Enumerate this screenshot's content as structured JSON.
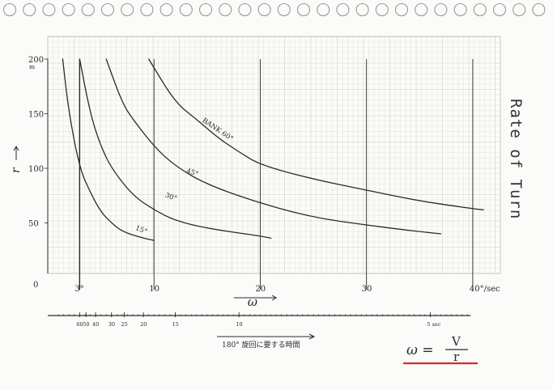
{
  "page": {
    "side_title": "Rate of Turn",
    "formula": {
      "lhs": "ω =",
      "numerator": "V",
      "denominator": "r"
    },
    "underline_color": "#d62b2b"
  },
  "colors": {
    "ink": "#2a2a2a",
    "grid_minor": "#e4e4e0",
    "grid_major": "#cfcfca",
    "paper": "#fbfbf9"
  },
  "chart_data": {
    "type": "line",
    "title": "",
    "xlabel": "ω",
    "ylabel": "r",
    "xlim": [
      0,
      41
    ],
    "ylim": [
      0,
      200
    ],
    "x_ticks": [
      {
        "value": 3,
        "label": "3°"
      },
      {
        "value": 10,
        "label": "10"
      },
      {
        "value": 20,
        "label": "20"
      },
      {
        "value": 30,
        "label": "30"
      },
      {
        "value": 40,
        "label": "40°/sec"
      }
    ],
    "y_ticks": [
      {
        "value": 50,
        "label": "50"
      },
      {
        "value": 100,
        "label": "100"
      },
      {
        "value": 150,
        "label": "150"
      },
      {
        "value": 200,
        "label": "200"
      }
    ],
    "y_unit": "m",
    "origin_label": "0",
    "vertical_lines": [
      3,
      10,
      20,
      30,
      40
    ],
    "series": [
      {
        "name": "15°",
        "points": [
          [
            1.4,
            200
          ],
          [
            2,
            150
          ],
          [
            3,
            100
          ],
          [
            4,
            78
          ],
          [
            5,
            60
          ],
          [
            6,
            50
          ],
          [
            7,
            42
          ],
          [
            9,
            36
          ],
          [
            10,
            34
          ]
        ]
      },
      {
        "name": "30°",
        "points": [
          [
            3,
            200
          ],
          [
            4,
            150
          ],
          [
            5,
            120
          ],
          [
            6,
            100
          ],
          [
            8,
            75
          ],
          [
            10,
            62
          ],
          [
            12,
            52
          ],
          [
            15,
            45
          ],
          [
            20,
            38
          ],
          [
            21,
            36
          ]
        ]
      },
      {
        "name": "45°",
        "points": [
          [
            5.5,
            200
          ],
          [
            7,
            160
          ],
          [
            8,
            145
          ],
          [
            10,
            120
          ],
          [
            12,
            102
          ],
          [
            15,
            85
          ],
          [
            20,
            68
          ],
          [
            25,
            55
          ],
          [
            30,
            48
          ],
          [
            35,
            42
          ],
          [
            37,
            40
          ]
        ]
      },
      {
        "name": "BANK 60°",
        "points": [
          [
            9.5,
            200
          ],
          [
            12,
            160
          ],
          [
            14,
            145
          ],
          [
            16,
            128
          ],
          [
            18,
            115
          ],
          [
            20,
            103
          ],
          [
            25,
            90
          ],
          [
            30,
            80
          ],
          [
            35,
            70
          ],
          [
            40,
            63
          ],
          [
            41,
            62
          ]
        ]
      }
    ],
    "series_labels": [
      {
        "text": "15°",
        "x": 8.2,
        "y": 44,
        "rotate": 22
      },
      {
        "text": "30°",
        "x": 11,
        "y": 74,
        "rotate": 20
      },
      {
        "text": "45°",
        "x": 13,
        "y": 96,
        "rotate": 18
      },
      {
        "text": "BANK 60°",
        "x": 14.5,
        "y": 143,
        "rotate": 34
      }
    ],
    "secondary_axis": {
      "title": "180° 旋回に要する時間",
      "ticks": [
        {
          "value": 60,
          "label": "60"
        },
        {
          "value": 50,
          "label": "50"
        },
        {
          "value": 40,
          "label": "40"
        },
        {
          "value": 30,
          "label": "30"
        },
        {
          "value": 25,
          "label": "25"
        },
        {
          "value": 20,
          "label": "20"
        },
        {
          "value": 15,
          "label": "15"
        },
        {
          "value": 10,
          "label": "10"
        },
        {
          "value": 5,
          "label": "5 sec"
        }
      ]
    }
  }
}
